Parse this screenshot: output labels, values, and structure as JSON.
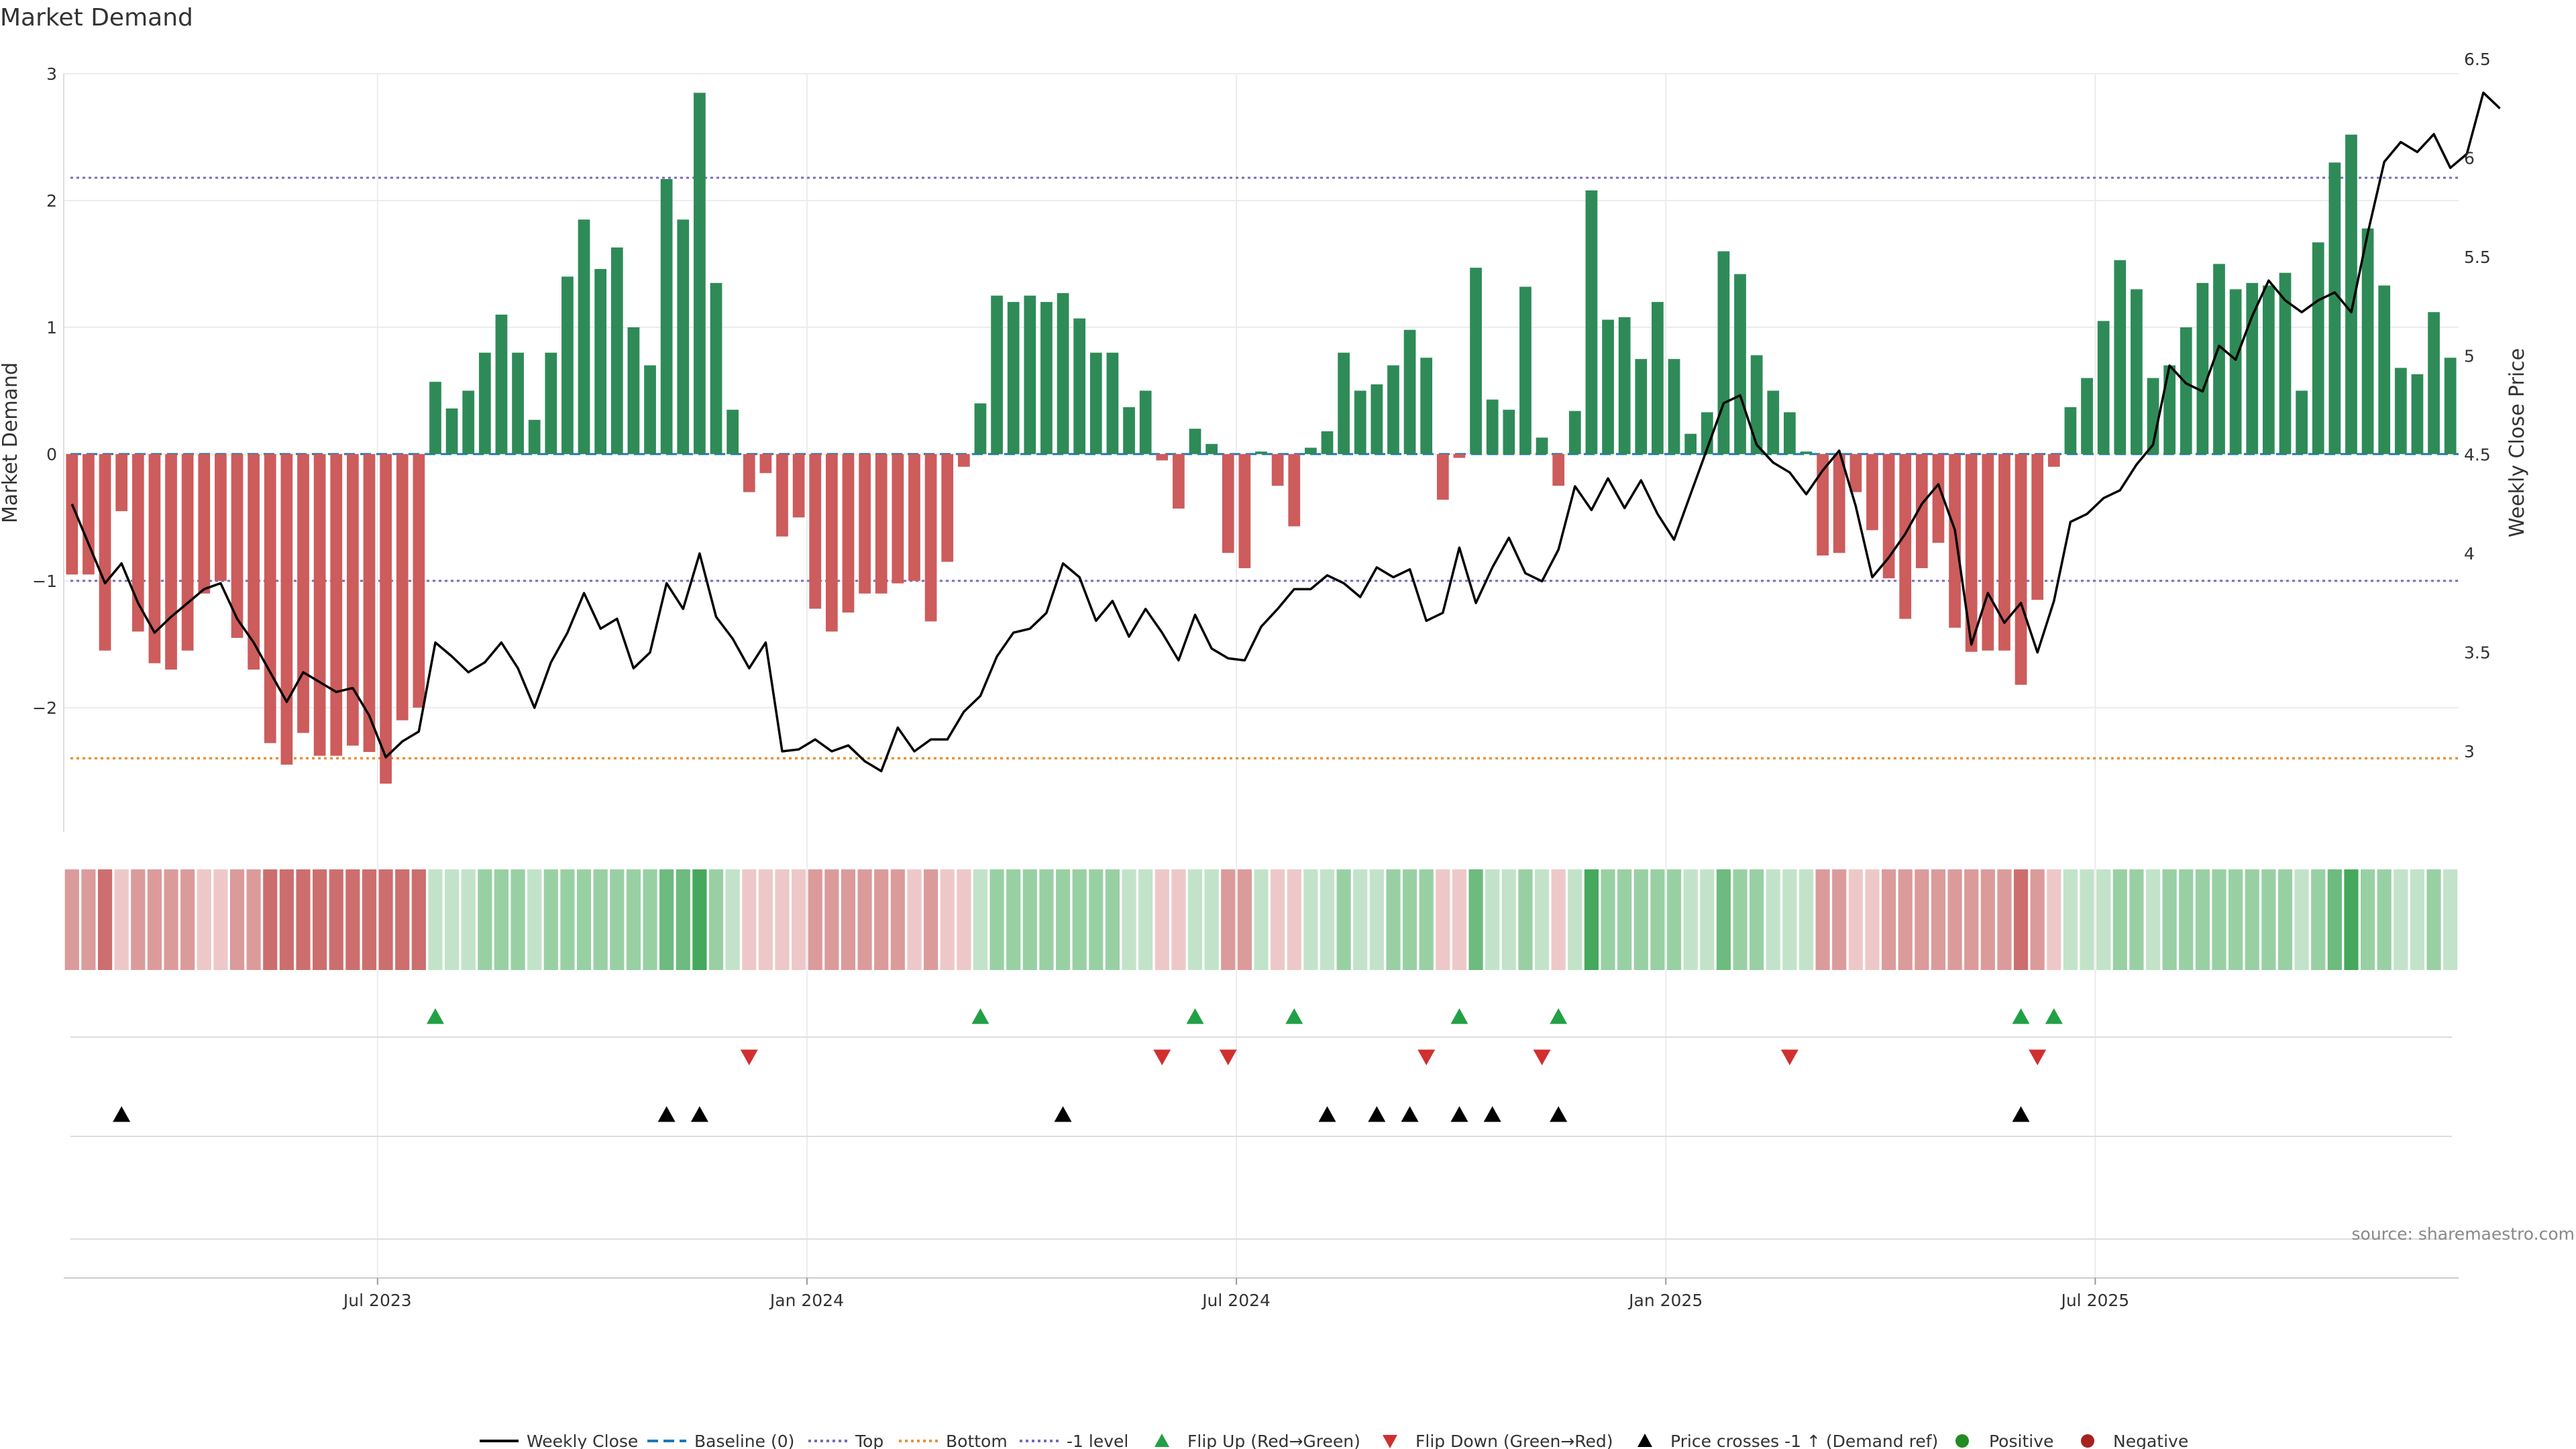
{
  "chart_data": {
    "type": "bar",
    "title": "Market Demand",
    "ylabel_left": "Market Demand",
    "ylabel_right": "Weekly Close Price",
    "ylim_left": [
      -2.98,
      3.0
    ],
    "ylim_right": [
      2.7,
      6.5
    ],
    "yticks_left": [
      3,
      2,
      1,
      0,
      -1,
      -2
    ],
    "yticks_left_labels": [
      "3",
      "2",
      "1",
      "0",
      "−1",
      "−2"
    ],
    "yticks_right": [
      6.5,
      6,
      5.5,
      5,
      4.5,
      4,
      3.5,
      3
    ],
    "yticks_right_labels": [
      "6.5",
      "6",
      "5.5",
      "5",
      "4.5",
      "4",
      "3.5",
      "3"
    ],
    "x_start": "2023-02-20",
    "x_end": "2025-10-27",
    "x_tick_weeks": [
      19,
      45,
      71,
      97,
      123
    ],
    "x_tick_labels": [
      "Jul 2023",
      "Jan 2024",
      "Jul 2024",
      "Jan 2025",
      "Jul 2025"
    ],
    "reference_lines": {
      "top": 2.18,
      "bottom": -2.4,
      "minus_one": -1.0,
      "baseline": 0
    },
    "demand": [
      -0.95,
      -0.95,
      -1.55,
      -0.45,
      -1.4,
      -1.65,
      -1.7,
      -1.55,
      -1.1,
      -1.0,
      -1.45,
      -1.7,
      -2.28,
      -2.45,
      -2.2,
      -2.38,
      -2.38,
      -2.3,
      -2.35,
      -2.6,
      -2.1,
      -2.0,
      0.57,
      0.36,
      0.5,
      0.8,
      1.1,
      0.8,
      0.27,
      0.8,
      1.4,
      1.85,
      1.46,
      1.63,
      1.0,
      0.7,
      2.17,
      1.85,
      2.85,
      1.35,
      0.35,
      -0.3,
      -0.15,
      -0.65,
      -0.5,
      -1.22,
      -1.4,
      -1.25,
      -1.1,
      -1.1,
      -1.02,
      -1.0,
      -1.32,
      -0.85,
      -0.1,
      0.4,
      1.25,
      1.2,
      1.25,
      1.2,
      1.27,
      1.07,
      0.8,
      0.8,
      0.37,
      0.5,
      -0.05,
      -0.43,
      0.2,
      0.08,
      -0.78,
      -0.9,
      0.02,
      -0.25,
      -0.57,
      0.05,
      0.18,
      0.8,
      0.5,
      0.55,
      0.7,
      0.98,
      0.76,
      -0.36,
      -0.03,
      1.47,
      0.43,
      0.35,
      1.32,
      0.13,
      -0.25,
      0.34,
      2.08,
      1.06,
      1.08,
      0.75,
      1.2,
      0.75,
      0.16,
      0.33,
      1.6,
      1.42,
      0.78,
      0.5,
      0.33,
      0.02,
      -0.8,
      -0.78,
      -0.3,
      -0.6,
      -0.98,
      -1.3,
      -0.9,
      -0.7,
      -1.37,
      -1.56,
      -1.55,
      -1.55,
      -1.82,
      -1.15,
      -0.1,
      0.37,
      0.6,
      1.05,
      1.53,
      1.3,
      0.6,
      0.7,
      1.0,
      1.35,
      1.5,
      1.3,
      1.35,
      1.33,
      1.43,
      0.5,
      1.67,
      2.3,
      2.52,
      1.78,
      1.33,
      0.68,
      0.63,
      1.12,
      0.76
    ],
    "price": [
      4.25,
      4.05,
      3.85,
      3.95,
      3.75,
      3.6,
      3.68,
      3.75,
      3.82,
      3.85,
      3.67,
      3.55,
      3.4,
      3.25,
      3.4,
      3.35,
      3.3,
      3.32,
      3.18,
      2.97,
      3.05,
      3.1,
      3.55,
      3.48,
      3.4,
      3.45,
      3.55,
      3.42,
      3.22,
      3.45,
      3.6,
      3.8,
      3.62,
      3.67,
      3.42,
      3.5,
      3.85,
      3.72,
      4.0,
      3.68,
      3.57,
      3.42,
      3.55,
      3.0,
      3.01,
      3.06,
      3.0,
      3.03,
      2.95,
      2.9,
      3.12,
      3.0,
      3.06,
      3.06,
      3.2,
      3.28,
      3.48,
      3.6,
      3.62,
      3.7,
      3.95,
      3.88,
      3.66,
      3.76,
      3.58,
      3.72,
      3.6,
      3.46,
      3.69,
      3.52,
      3.47,
      3.46,
      3.63,
      3.72,
      3.82,
      3.82,
      3.89,
      3.85,
      3.78,
      3.93,
      3.88,
      3.92,
      3.66,
      3.7,
      4.03,
      3.75,
      3.93,
      4.08,
      3.9,
      3.86,
      4.02,
      4.34,
      4.22,
      4.38,
      4.23,
      4.37,
      4.2,
      4.07,
      4.3,
      4.53,
      4.76,
      4.8,
      4.55,
      4.46,
      4.41,
      4.3,
      4.42,
      4.52,
      4.24,
      3.88,
      3.98,
      4.1,
      4.25,
      4.35,
      4.12,
      3.54,
      3.8,
      3.65,
      3.75,
      3.5,
      3.76,
      4.16,
      4.2,
      4.28,
      4.32,
      4.45,
      4.55,
      4.95,
      4.86,
      4.82,
      5.05,
      4.98,
      5.2,
      5.38,
      5.28,
      5.22,
      5.28,
      5.32,
      5.22,
      5.62,
      5.98,
      6.08,
      6.03,
      6.12,
      5.95,
      6.02,
      6.33,
      6.25
    ],
    "heat": [
      -2,
      -2,
      -3,
      -1,
      -2,
      -2,
      -2,
      -2,
      -1,
      -1,
      -2,
      -2,
      -3,
      -3,
      -3,
      -3,
      -3,
      -3,
      -3,
      -3,
      -3,
      -3,
      1,
      1,
      1,
      2,
      2,
      2,
      1,
      2,
      2,
      2,
      2,
      2,
      2,
      2,
      3,
      3,
      4,
      2,
      1,
      -1,
      -1,
      -1,
      -1,
      -2,
      -2,
      -2,
      -2,
      -2,
      -2,
      -1,
      -2,
      -1,
      -1,
      1,
      2,
      2,
      2,
      2,
      2,
      2,
      2,
      2,
      1,
      1,
      -1,
      -1,
      1,
      1,
      -2,
      -2,
      1,
      -1,
      -1,
      1,
      1,
      2,
      1,
      1,
      2,
      2,
      2,
      -1,
      -1,
      3,
      1,
      1,
      2,
      1,
      -1,
      1,
      4,
      2,
      2,
      2,
      2,
      2,
      1,
      1,
      3,
      2,
      2,
      1,
      1,
      1,
      -2,
      -2,
      -1,
      -1,
      -2,
      -2,
      -2,
      -2,
      -2,
      -2,
      -2,
      -2,
      -3,
      -2,
      -1,
      1,
      1,
      1,
      2,
      2,
      1,
      2,
      2,
      2,
      2,
      2,
      2,
      2,
      2,
      1,
      2,
      3,
      4,
      2,
      2,
      1,
      1,
      2,
      1
    ],
    "flip_up_weeks": [
      22,
      55,
      68,
      74,
      84,
      90,
      118,
      120
    ],
    "flip_down_weeks": [
      41,
      66,
      70,
      82,
      89,
      104,
      119
    ],
    "price_cross_weeks": [
      3,
      36,
      38,
      60,
      76,
      79,
      81,
      84,
      86,
      90,
      118
    ],
    "legend": [
      "Weekly Close",
      "Baseline (0)",
      "Top",
      "Bottom",
      "-1 level",
      "Flip Up (Red→Green)",
      "Flip Down (Green→Red)",
      "Price crosses -1 ↑ (Demand ref)",
      "Positive",
      "Negative"
    ],
    "source": "source: sharemaestro.com"
  },
  "colors": {
    "positive_bar": "#2e8b57",
    "negative_bar": "#cd5c5c",
    "price_line": "#000000",
    "baseline": "#1f77b4",
    "top": "#7b68b8",
    "bottom": "#e69138",
    "minus_one": "#7b68b8",
    "flip_up": "#22a046",
    "flip_down": "#d03030",
    "cross": "#000000",
    "dot_positive": "#228b22",
    "dot_negative": "#a82020"
  }
}
